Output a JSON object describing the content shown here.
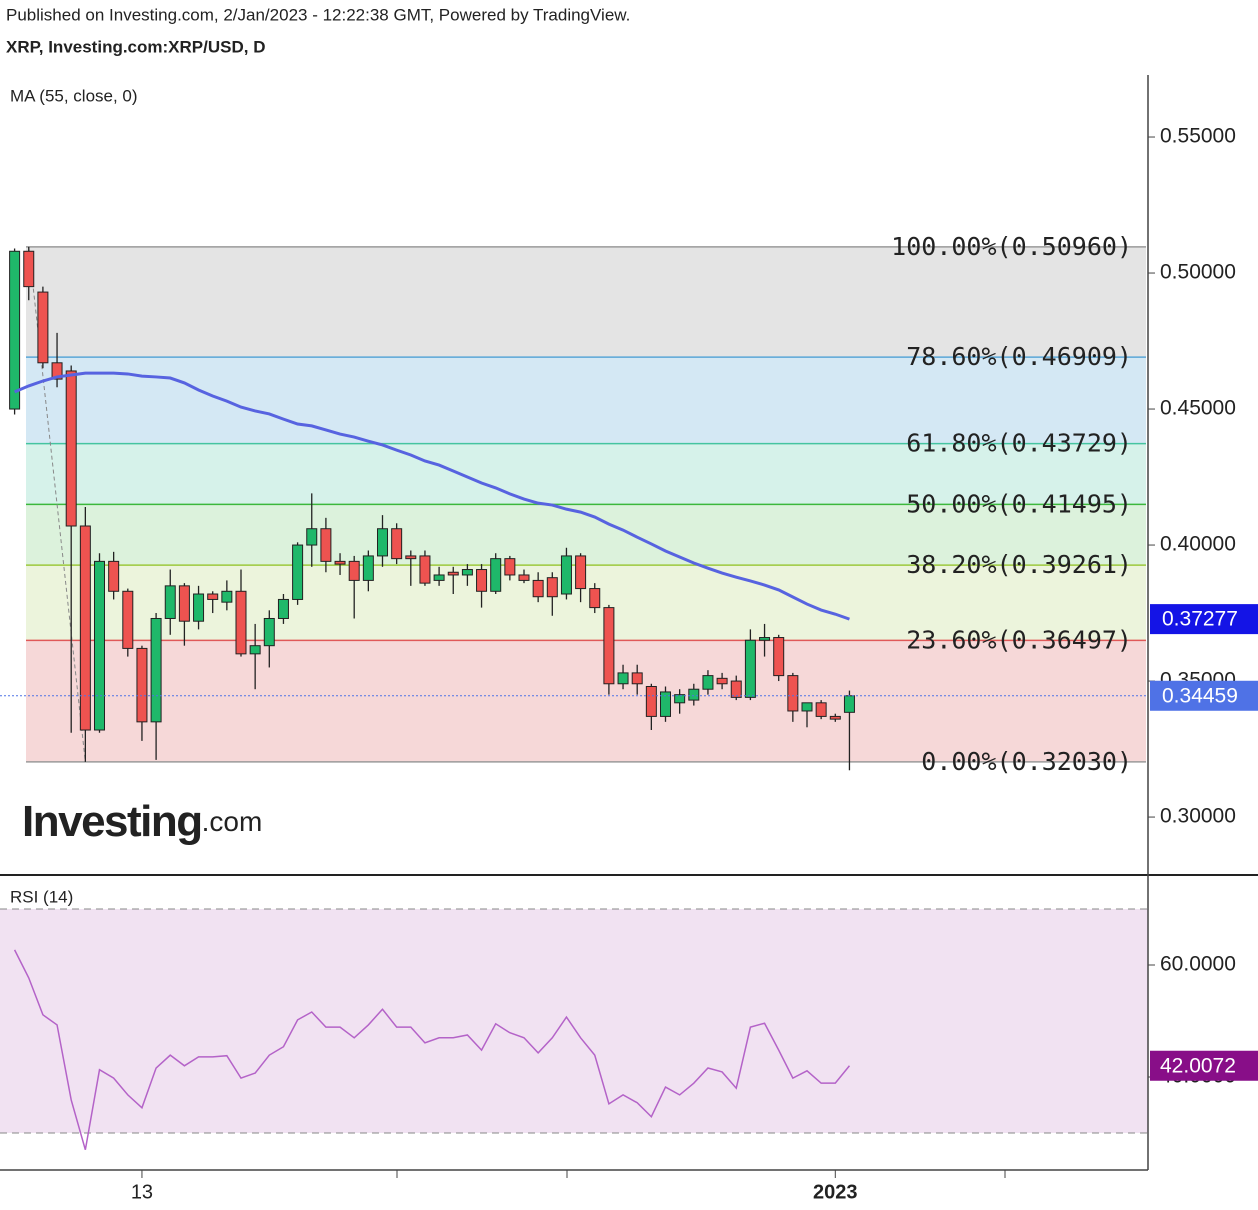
{
  "header": {
    "published": "Published on Investing.com, 2/Jan/2023 - 12:22:38 GMT, Powered by TradingView.",
    "symbol": "XRP, Investing.com:XRP/USD, D",
    "logo_main": "Investing",
    "logo_suffix": ".com"
  },
  "chart_data": [
    {
      "type": "candlestick",
      "up_color": "#1fb86a",
      "down_color": "#ee5350",
      "border_color": "#222222",
      "ohlc": {
        "open": [
          0.45,
          0.508,
          0.493,
          0.467,
          0.464,
          0.407,
          0.332,
          0.394,
          0.383,
          0.362,
          0.335,
          0.373,
          0.385,
          0.372,
          0.382,
          0.379,
          0.383,
          0.36,
          0.363,
          0.373,
          0.38,
          0.4,
          0.406,
          0.394,
          0.394,
          0.387,
          0.396,
          0.406,
          0.396,
          0.396,
          0.387,
          0.39,
          0.389,
          0.391,
          0.383,
          0.395,
          0.389,
          0.387,
          0.388,
          0.382,
          0.396,
          0.384,
          0.377,
          0.349,
          0.353,
          0.348,
          0.337,
          0.342,
          0.343,
          0.347,
          0.351,
          0.35,
          0.344,
          0.365,
          0.366,
          0.352,
          0.339,
          0.342,
          0.337,
          0.3385
        ],
        "high": [
          0.509,
          0.5096,
          0.495,
          0.478,
          0.466,
          0.414,
          0.397,
          0.3975,
          0.384,
          0.363,
          0.375,
          0.391,
          0.386,
          0.385,
          0.383,
          0.387,
          0.391,
          0.371,
          0.376,
          0.382,
          0.401,
          0.419,
          0.41,
          0.397,
          0.396,
          0.398,
          0.411,
          0.408,
          0.398,
          0.398,
          0.392,
          0.392,
          0.393,
          0.393,
          0.397,
          0.396,
          0.391,
          0.39,
          0.39,
          0.399,
          0.397,
          0.386,
          0.378,
          0.356,
          0.356,
          0.349,
          0.348,
          0.347,
          0.349,
          0.354,
          0.353,
          0.352,
          0.369,
          0.371,
          0.367,
          0.353,
          0.342,
          0.343,
          0.338,
          0.3465
        ],
        "low": [
          0.448,
          0.49,
          0.465,
          0.458,
          0.331,
          0.3203,
          0.331,
          0.38,
          0.359,
          0.328,
          0.321,
          0.367,
          0.363,
          0.369,
          0.375,
          0.376,
          0.359,
          0.347,
          0.355,
          0.371,
          0.378,
          0.392,
          0.39,
          0.389,
          0.373,
          0.383,
          0.392,
          0.393,
          0.385,
          0.385,
          0.385,
          0.382,
          0.385,
          0.377,
          0.382,
          0.387,
          0.386,
          0.379,
          0.374,
          0.38,
          0.379,
          0.375,
          0.345,
          0.347,
          0.345,
          0.332,
          0.335,
          0.338,
          0.341,
          0.345,
          0.347,
          0.343,
          0.343,
          0.359,
          0.35,
          0.335,
          0.333,
          0.336,
          0.335,
          0.3172
        ],
        "close": [
          0.508,
          0.495,
          0.467,
          0.461,
          0.407,
          0.332,
          0.394,
          0.383,
          0.362,
          0.335,
          0.373,
          0.385,
          0.372,
          0.382,
          0.38,
          0.383,
          0.36,
          0.363,
          0.373,
          0.38,
          0.4,
          0.406,
          0.394,
          0.393,
          0.387,
          0.396,
          0.406,
          0.395,
          0.395,
          0.386,
          0.389,
          0.389,
          0.391,
          0.383,
          0.395,
          0.389,
          0.387,
          0.381,
          0.381,
          0.396,
          0.384,
          0.377,
          0.349,
          0.353,
          0.349,
          0.337,
          0.346,
          0.345,
          0.347,
          0.352,
          0.349,
          0.344,
          0.365,
          0.366,
          0.352,
          0.339,
          0.342,
          0.337,
          0.336,
          0.34459
        ]
      },
      "series": [
        {
          "name": "MA (55, close, 0)",
          "color": "#5763e0",
          "values": [
            0.4563,
            0.4585,
            0.4603,
            0.4618,
            0.4625,
            0.4632,
            0.4632,
            0.4632,
            0.4629,
            0.4621,
            0.4618,
            0.4614,
            0.4596,
            0.457,
            0.4548,
            0.4529,
            0.4507,
            0.4493,
            0.4482,
            0.4463,
            0.4445,
            0.4438,
            0.4423,
            0.4408,
            0.4397,
            0.4382,
            0.4368,
            0.4349,
            0.4331,
            0.4309,
            0.4294,
            0.4272,
            0.425,
            0.4228,
            0.421,
            0.4188,
            0.4169,
            0.4154,
            0.4147,
            0.4132,
            0.4121,
            0.4103,
            0.4077,
            0.4055,
            0.4029,
            0.4004,
            0.3978,
            0.3956,
            0.3934,
            0.3915,
            0.3897,
            0.3882,
            0.3868,
            0.3853,
            0.3835,
            0.3809,
            0.3783,
            0.3761,
            0.3746,
            0.37277
          ]
        }
      ],
      "fib_levels": [
        {
          "label": "100.00%(0.50960)",
          "value": 0.5096,
          "color": "#9a9a9a",
          "fill": "#e4e4e4"
        },
        {
          "label": "78.60%(0.46909)",
          "value": 0.46909,
          "color": "#5aa6d6",
          "fill": "#d4e8f4"
        },
        {
          "label": "61.80%(0.43729)",
          "value": 0.43729,
          "color": "#45c4a0",
          "fill": "#d6f2ea"
        },
        {
          "label": "50.00%(0.41495)",
          "value": 0.41495,
          "color": "#3cb83c",
          "fill": "#dcf2dc"
        },
        {
          "label": "38.20%(0.39261)",
          "value": 0.39261,
          "color": "#9cc83c",
          "fill": "#ecf4dc"
        },
        {
          "label": "23.60%(0.36497)",
          "value": 0.36497,
          "color": "#e05858",
          "fill": "#f6d8d8"
        },
        {
          "label": "0.00%(0.32030)",
          "value": 0.3203,
          "color": "#9a9a9a"
        }
      ],
      "ylim": [
        0.2787,
        0.5728
      ],
      "yticks": [
        {
          "value": 0.3,
          "label": "0.30000"
        },
        {
          "value": 0.35,
          "label": "0.35000"
        },
        {
          "value": 0.4,
          "label": "0.40000"
        },
        {
          "value": 0.45,
          "label": "0.45000"
        },
        {
          "value": 0.5,
          "label": "0.50000"
        },
        {
          "value": 0.55,
          "label": "0.55000"
        }
      ],
      "last_price_color": "#4f72e6",
      "ma_label_color": "#1414e6"
    },
    {
      "type": "line",
      "categories": [
        null,
        null,
        null,
        null,
        null,
        null,
        null,
        null,
        null,
        "13",
        null,
        null,
        null,
        null,
        null,
        null,
        null,
        null,
        null,
        null,
        null,
        null,
        null,
        null,
        null,
        null,
        null,
        null,
        null,
        null,
        null,
        null,
        null,
        null,
        null,
        null,
        null,
        null,
        null,
        null,
        null,
        null,
        null,
        null,
        null,
        null,
        null,
        null,
        null,
        null,
        null,
        null,
        null,
        null,
        null,
        null,
        null,
        null,
        "2023",
        null
      ],
      "series": [
        {
          "name": "RSI (14)",
          "color": "#b463c8",
          "values": [
            62.7,
            57.7,
            51.1,
            49.3,
            35.9,
            27.0,
            41.3,
            39.8,
            36.8,
            34.5,
            41.6,
            43.9,
            42.0,
            43.6,
            43.6,
            43.8,
            39.8,
            40.7,
            43.9,
            45.4,
            50.2,
            51.6,
            48.9,
            48.9,
            47.0,
            49.3,
            52.1,
            48.9,
            48.9,
            46.1,
            47.0,
            47.0,
            47.5,
            44.8,
            49.5,
            47.9,
            47.0,
            44.3,
            47.0,
            50.7,
            47.0,
            43.9,
            35.2,
            36.8,
            35.4,
            32.9,
            38.2,
            36.8,
            38.9,
            41.6,
            40.9,
            38.0,
            48.9,
            49.6,
            44.8,
            39.8,
            41.1,
            38.9,
            38.9,
            42.0072
          ]
        }
      ],
      "bands": [
        30,
        70
      ],
      "band_color": "#f1e2f2",
      "label_color": "#880e88",
      "ylim": [
        23.39,
        76.07
      ],
      "yticks": [
        {
          "value": 40,
          "label": "40.0000"
        },
        {
          "value": 60,
          "label": "60.0000"
        }
      ]
    }
  ]
}
